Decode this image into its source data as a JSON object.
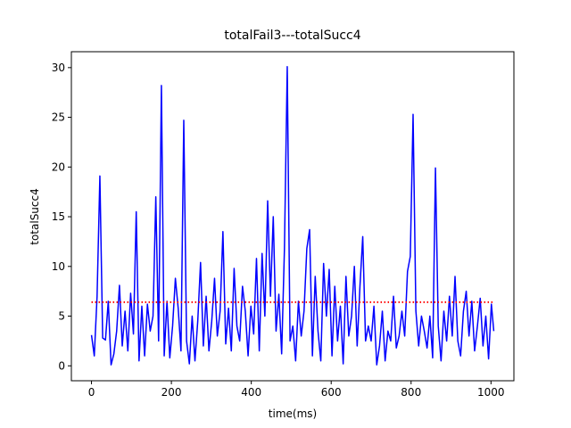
{
  "chart_data": {
    "type": "line",
    "title": "totalFail3---totalSucc4",
    "x_label": "time(ms)",
    "y_label": "totalSucc4",
    "series": [
      {
        "color": "#0000ff",
        "linestyle": "solid",
        "x": [
          0,
          7,
          14,
          21,
          28,
          35,
          42,
          49,
          56,
          63,
          70,
          77,
          84,
          91,
          98,
          105,
          112,
          119,
          126,
          133,
          140,
          147,
          154,
          161,
          168,
          175,
          182,
          189,
          196,
          203,
          210,
          217,
          224,
          231,
          238,
          245,
          252,
          259,
          266,
          273,
          280,
          287,
          294,
          301,
          308,
          315,
          322,
          329,
          336,
          343,
          350,
          357,
          364,
          371,
          378,
          385,
          392,
          399,
          406,
          413,
          420,
          427,
          434,
          441,
          448,
          455,
          462,
          469,
          476,
          483,
          490,
          497,
          504,
          511,
          518,
          525,
          532,
          539,
          546,
          553,
          560,
          567,
          574,
          581,
          588,
          595,
          602,
          609,
          616,
          623,
          630,
          637,
          644,
          651,
          658,
          665,
          672,
          679,
          686,
          693,
          700,
          707,
          714,
          721,
          728,
          735,
          742,
          749,
          756,
          763,
          770,
          777,
          784,
          791,
          798,
          805,
          812,
          819,
          826,
          833,
          840,
          847,
          854,
          861,
          868,
          875,
          882,
          889,
          896,
          903,
          910,
          917,
          924,
          931,
          938,
          945,
          952,
          959,
          966,
          973,
          980,
          987,
          994,
          1001,
          1007
        ],
        "values": [
          3.1,
          1.0,
          7.0,
          19.1,
          2.8,
          2.6,
          6.5,
          0.1,
          1.2,
          3.5,
          8.1,
          2.0,
          5.5,
          1.5,
          7.3,
          3.2,
          15.5,
          0.5,
          6.0,
          1.0,
          6.2,
          3.5,
          5.0,
          17.0,
          2.5,
          28.2,
          1.0,
          6.5,
          0.8,
          4.0,
          8.8,
          5.8,
          1.5,
          24.7,
          2.5,
          0.2,
          5.0,
          0.5,
          4.5,
          10.4,
          2.0,
          7.0,
          1.5,
          4.5,
          8.8,
          3.0,
          5.5,
          13.5,
          2.2,
          5.8,
          1.5,
          9.8,
          4.0,
          2.5,
          8.0,
          5.5,
          1.0,
          6.0,
          3.2,
          10.8,
          1.5,
          11.3,
          5.0,
          16.6,
          7.0,
          15.0,
          3.5,
          7.2,
          1.2,
          11.8,
          30.1,
          2.5,
          4.0,
          0.5,
          6.5,
          3.0,
          5.5,
          11.8,
          13.7,
          1.0,
          9.0,
          3.5,
          0.5,
          10.3,
          5.0,
          9.7,
          1.0,
          8.0,
          2.5,
          6.0,
          0.2,
          9.0,
          3.0,
          5.0,
          10.0,
          2.0,
          8.0,
          13.0,
          2.5,
          4.0,
          2.5,
          6.0,
          0.1,
          2.0,
          5.5,
          0.5,
          3.5,
          2.5,
          7.0,
          1.8,
          3.0,
          5.5,
          3.0,
          9.5,
          11.0,
          25.3,
          5.5,
          2.0,
          5.0,
          3.5,
          1.8,
          5.0,
          0.8,
          19.9,
          4.0,
          0.5,
          5.5,
          2.5,
          7.0,
          3.0,
          9.0,
          2.5,
          1.0,
          5.5,
          7.5,
          3.0,
          6.5,
          1.5,
          4.0,
          6.8,
          2.0,
          5.0,
          0.7,
          6.2,
          3.5
        ]
      },
      {
        "color": "#ff0000",
        "linestyle": "dotted",
        "x": [
          0,
          1007
        ],
        "values": [
          6.4,
          6.4
        ]
      }
    ],
    "xlim": [
      -50.35,
      1057.35
    ],
    "ylim": [
      -1.5,
      31.6
    ],
    "xticks": [
      0,
      200,
      400,
      600,
      800,
      1000
    ],
    "yticks": [
      0,
      5,
      10,
      15,
      20,
      25,
      30
    ]
  }
}
